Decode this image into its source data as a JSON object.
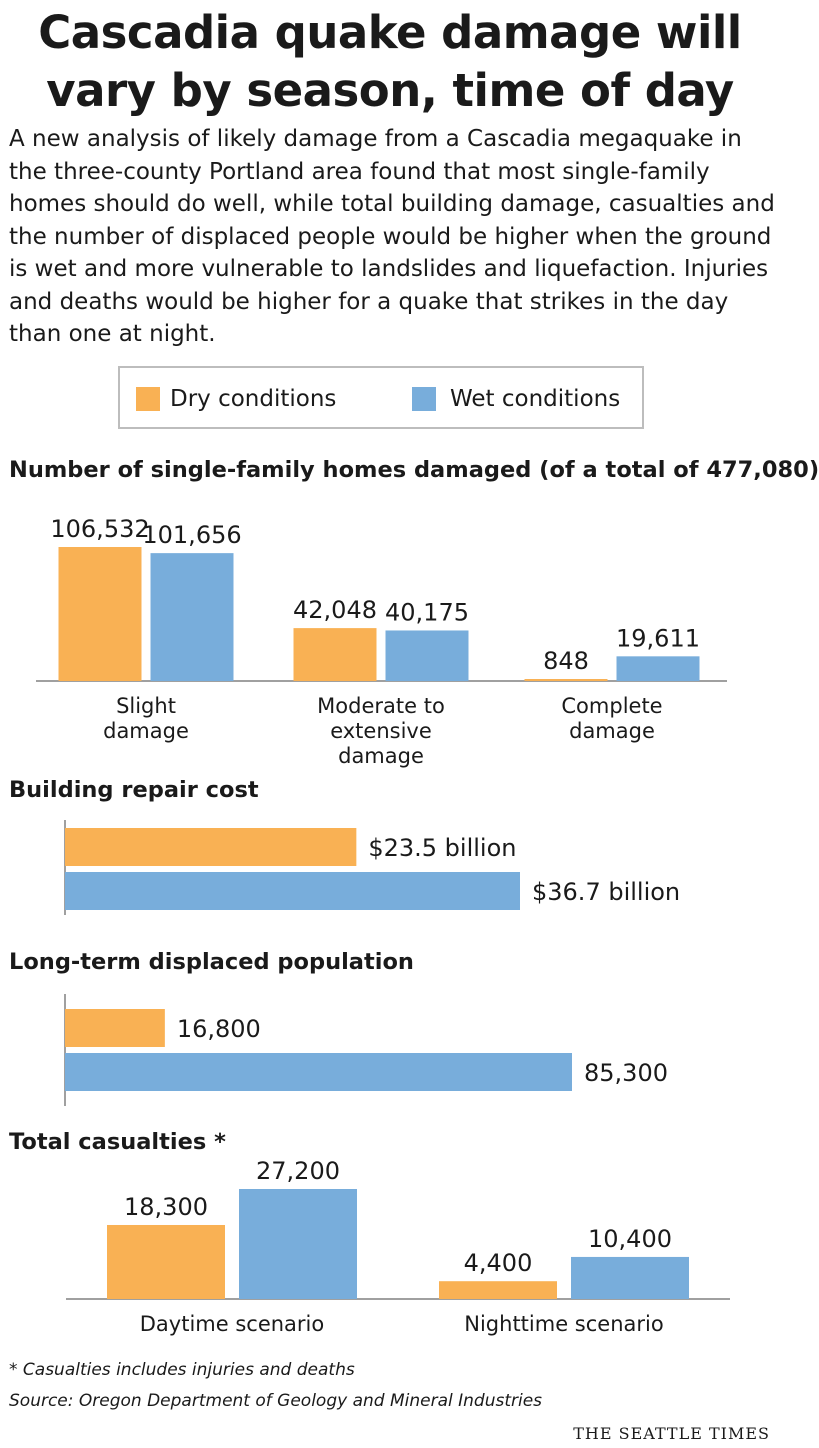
{
  "title": "Cascadia quake damage will vary by season, time of day",
  "intro": "A new analysis of likely damage from a Cascadia megaquake in the three-county Portland area found that most single-family homes should do well, while total building damage, casualties and the number of displaced people would be higher when the ground is wet and more vulnerable to landslides and liquefaction. Injuries and deaths would be higher for a quake that strikes in the day than one at night.",
  "legend": {
    "dry": "Dry conditions",
    "wet": "Wet conditions"
  },
  "colors": {
    "dry": "#f9b154",
    "wet": "#78addb",
    "axis": "#808080"
  },
  "sections": {
    "homes": "Number of single-family homes damaged (of a total of 477,080)",
    "repair": "Building repair cost",
    "displaced": "Long-term displaced population",
    "casualties": "Total casualties *"
  },
  "chart_data": [
    {
      "type": "bar",
      "orientation": "vertical",
      "title": "Number of single-family homes damaged (of a total of 477,080)",
      "categories": [
        "Slight damage",
        "Moderate to extensive damage",
        "Complete damage"
      ],
      "series": [
        {
          "name": "Dry conditions",
          "values": [
            106532,
            42048,
            848
          ],
          "labels": [
            "106,532",
            "42,048",
            "848"
          ]
        },
        {
          "name": "Wet conditions",
          "values": [
            101656,
            40175,
            19611
          ],
          "labels": [
            "101,656",
            "40,175",
            "19,611"
          ]
        }
      ],
      "ylim": [
        0,
        106532
      ]
    },
    {
      "type": "bar",
      "orientation": "horizontal",
      "title": "Building repair cost",
      "series": [
        {
          "name": "Dry conditions",
          "values": [
            23.5
          ],
          "labels": [
            "$23.5 billion"
          ]
        },
        {
          "name": "Wet conditions",
          "values": [
            36.7
          ],
          "labels": [
            "$36.7 billion"
          ]
        }
      ],
      "xlim": [
        0,
        36.7
      ]
    },
    {
      "type": "bar",
      "orientation": "horizontal",
      "title": "Long-term displaced population",
      "series": [
        {
          "name": "Dry conditions",
          "values": [
            16800
          ],
          "labels": [
            "16,800"
          ]
        },
        {
          "name": "Wet conditions",
          "values": [
            85300
          ],
          "labels": [
            "85,300"
          ]
        }
      ],
      "xlim": [
        0,
        85300
      ]
    },
    {
      "type": "bar",
      "orientation": "vertical",
      "title": "Total casualties *",
      "categories": [
        "Daytime scenario",
        "Nighttime scenario"
      ],
      "series": [
        {
          "name": "Dry conditions",
          "values": [
            18300,
            4400
          ],
          "labels": [
            "18,300",
            "4,400"
          ]
        },
        {
          "name": "Wet conditions",
          "values": [
            27200,
            10400
          ],
          "labels": [
            "27,200",
            "10,400"
          ]
        }
      ],
      "ylim": [
        0,
        27200
      ]
    }
  ],
  "footnotes": {
    "note": "* Casualties includes injuries and deaths",
    "source": "Source: Oregon Department of Geology and Mineral Industries"
  },
  "credit": "THE SEATTLE TIMES"
}
